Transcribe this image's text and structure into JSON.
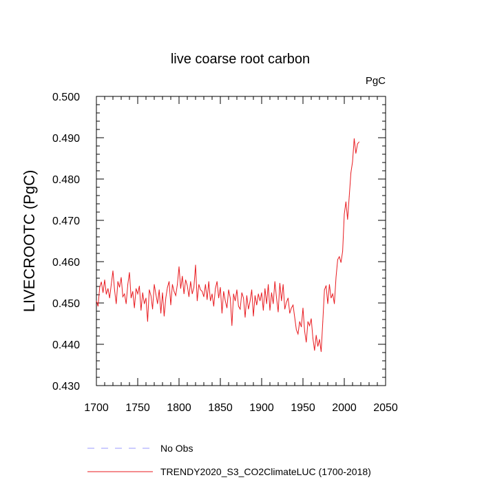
{
  "chart_data": {
    "type": "line",
    "title": "live coarse root carbon",
    "units_label": "PgC",
    "xlabel": "",
    "ylabel": "LIVECROOTC  (PgC)",
    "xlim": [
      1700,
      2050
    ],
    "ylim": [
      0.43,
      0.5
    ],
    "x_ticks": [
      1700,
      1750,
      1800,
      1850,
      1900,
      1950,
      2000,
      2050
    ],
    "x_tick_labels": [
      "1700",
      "1750",
      "1800",
      "1850",
      "1900",
      "1950",
      "2000",
      "2050"
    ],
    "y_ticks": [
      0.43,
      0.44,
      0.45,
      0.46,
      0.47,
      0.48,
      0.49,
      0.5
    ],
    "y_tick_labels": [
      "0.430",
      "0.440",
      "0.450",
      "0.460",
      "0.470",
      "0.480",
      "0.490",
      "0.500"
    ],
    "grid": false,
    "series": [
      {
        "name": "No Obs",
        "color": "#9999ff",
        "dash": "dashed",
        "x": [],
        "y": []
      },
      {
        "name": "TRENDY2020_S3_CO2ClimateLUC (1700-2018)",
        "color": "#e8191e",
        "dash": "solid",
        "x": [
          1700,
          1702,
          1704,
          1706,
          1708,
          1710,
          1712,
          1714,
          1716,
          1718,
          1720,
          1722,
          1724,
          1726,
          1728,
          1730,
          1732,
          1734,
          1736,
          1738,
          1740,
          1742,
          1744,
          1746,
          1748,
          1750,
          1752,
          1754,
          1756,
          1758,
          1760,
          1762,
          1764,
          1766,
          1768,
          1770,
          1772,
          1774,
          1776,
          1778,
          1780,
          1782,
          1784,
          1786,
          1788,
          1790,
          1792,
          1794,
          1796,
          1798,
          1800,
          1802,
          1804,
          1806,
          1808,
          1810,
          1812,
          1814,
          1816,
          1818,
          1820,
          1822,
          1824,
          1826,
          1828,
          1830,
          1832,
          1834,
          1836,
          1838,
          1840,
          1842,
          1844,
          1846,
          1848,
          1850,
          1852,
          1854,
          1856,
          1858,
          1860,
          1862,
          1864,
          1866,
          1868,
          1870,
          1872,
          1874,
          1876,
          1878,
          1880,
          1882,
          1884,
          1886,
          1888,
          1890,
          1892,
          1894,
          1896,
          1898,
          1900,
          1902,
          1904,
          1906,
          1908,
          1910,
          1912,
          1914,
          1916,
          1918,
          1920,
          1922,
          1924,
          1926,
          1928,
          1930,
          1932,
          1934,
          1936,
          1938,
          1940,
          1942,
          1944,
          1946,
          1948,
          1950,
          1952,
          1954,
          1956,
          1958,
          1960,
          1962,
          1964,
          1966,
          1968,
          1970,
          1972,
          1974,
          1976,
          1978,
          1980,
          1982,
          1984,
          1986,
          1988,
          1990,
          1992,
          1994,
          1996,
          1998,
          2000,
          2002,
          2004,
          2006,
          2008,
          2010,
          2012,
          2014,
          2016,
          2018
        ],
        "y": [
          0.4505,
          0.4492,
          0.4538,
          0.4551,
          0.4525,
          0.4556,
          0.4521,
          0.4535,
          0.4512,
          0.4545,
          0.4578,
          0.4531,
          0.4498,
          0.4552,
          0.4538,
          0.4562,
          0.4515,
          0.4522,
          0.4498,
          0.4545,
          0.4574,
          0.4512,
          0.4528,
          0.4488,
          0.4535,
          0.4522,
          0.4541,
          0.4482,
          0.4525,
          0.4498,
          0.4512,
          0.4455,
          0.4532,
          0.4518,
          0.4485,
          0.4545,
          0.4521,
          0.4498,
          0.4532,
          0.4475,
          0.4525,
          0.4468,
          0.4512,
          0.4538,
          0.4552,
          0.4495,
          0.4545,
          0.4528,
          0.4518,
          0.4545,
          0.4588,
          0.4535,
          0.4565,
          0.4522,
          0.4556,
          0.4542,
          0.4515,
          0.4552,
          0.4522,
          0.4538,
          0.4592,
          0.4505,
          0.4545,
          0.4532,
          0.4528,
          0.4515,
          0.4545,
          0.4508,
          0.4552,
          0.4505,
          0.4522,
          0.4492,
          0.4535,
          0.4552,
          0.4512,
          0.4538,
          0.4475,
          0.4528,
          0.4505,
          0.4488,
          0.4532,
          0.4512,
          0.4445,
          0.4522,
          0.4505,
          0.4532,
          0.4492,
          0.4485,
          0.4525,
          0.4512,
          0.4465,
          0.4518,
          0.4485,
          0.4505,
          0.4532,
          0.4468,
          0.4518,
          0.4495,
          0.4522,
          0.4505,
          0.4525,
          0.4482,
          0.4535,
          0.4498,
          0.4545,
          0.4482,
          0.4525,
          0.4498,
          0.4552,
          0.4512,
          0.4478,
          0.4548,
          0.4505,
          0.4545,
          0.4485,
          0.4502,
          0.4512,
          0.4475,
          0.4488,
          0.4495,
          0.4465,
          0.4435,
          0.4425,
          0.4455,
          0.4442,
          0.4488,
          0.4432,
          0.4405,
          0.4455,
          0.4445,
          0.4462,
          0.4415,
          0.4385,
          0.4422,
          0.4395,
          0.4412,
          0.4382,
          0.4455,
          0.4532,
          0.4542,
          0.4498,
          0.4545,
          0.4512,
          0.4522,
          0.4498,
          0.4562,
          0.4605,
          0.4612,
          0.4598,
          0.4625,
          0.4715,
          0.4745,
          0.4702,
          0.4758,
          0.4815,
          0.4842,
          0.4898,
          0.4862,
          0.4885,
          0.489
        ]
      }
    ],
    "legend": {
      "placement": "bottom-left",
      "entries": [
        {
          "label": "No Obs",
          "color": "#9999ff",
          "style": "dashed"
        },
        {
          "label": "TRENDY2020_S3_CO2ClimateLUC (1700-2018)",
          "color": "#e8191e",
          "style": "solid"
        }
      ]
    }
  }
}
